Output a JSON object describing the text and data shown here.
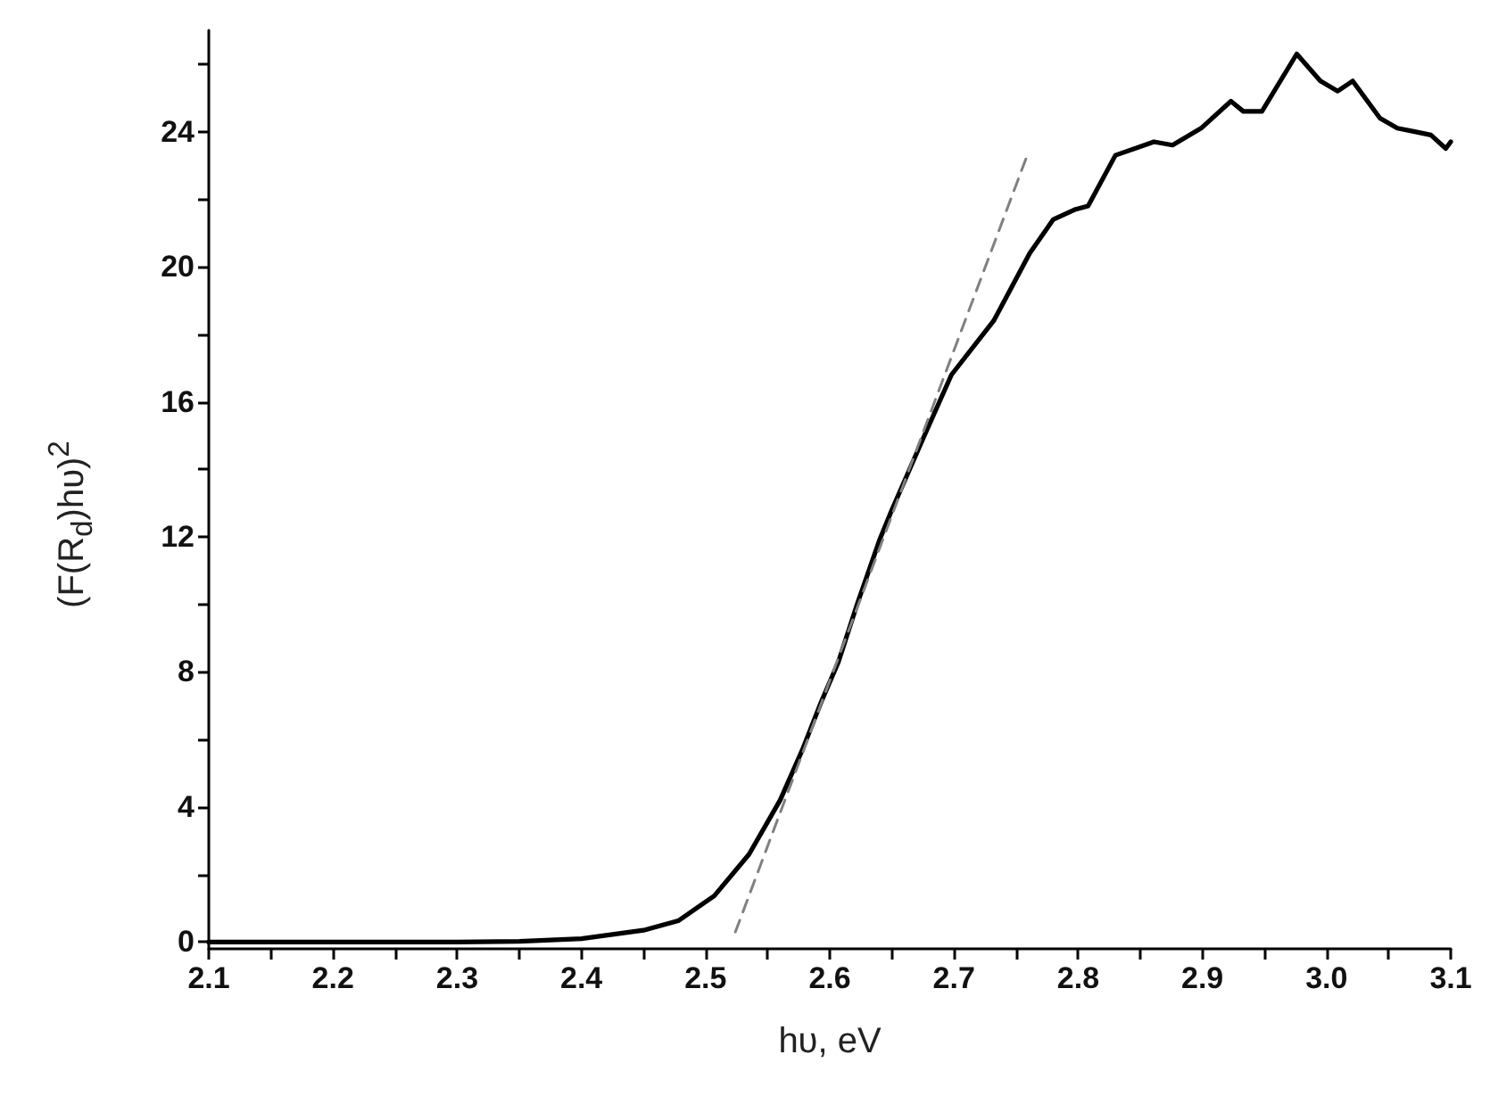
{
  "chart_data": {
    "type": "line",
    "xlabel": "hυ, eV",
    "ylabel": "(F(R$_{d}$)hυ)$^{2}$",
    "series": [
      {
        "color": "#000000",
        "line_style": "solid",
        "x": [
          2.1,
          2.2,
          2.3,
          2.35,
          2.4,
          2.45,
          2.478,
          2.507,
          2.535,
          2.56,
          2.578,
          2.593,
          2.607,
          2.622,
          2.64,
          2.65,
          2.675,
          2.698,
          2.732,
          2.761,
          2.78,
          2.798,
          2.808,
          2.83,
          2.861,
          2.876,
          2.899,
          2.923,
          2.933,
          2.948,
          2.976,
          2.995,
          3.009,
          3.021,
          3.043,
          3.057,
          3.071,
          3.084,
          3.096,
          3.1
        ],
        "values": [
          0,
          0,
          0,
          0.02,
          0.1,
          0.35,
          0.63,
          1.37,
          2.6,
          4.2,
          5.7,
          7.1,
          8.3,
          10.0,
          11.9,
          12.8,
          14.9,
          16.8,
          18.4,
          20.4,
          21.4,
          21.7,
          21.8,
          23.3,
          23.7,
          23.6,
          24.1,
          24.9,
          24.6,
          24.6,
          26.3,
          25.5,
          25.2,
          25.5,
          24.4,
          24.1,
          24.0,
          23.9,
          23.5,
          23.7
        ]
      },
      {
        "color": "#808080",
        "line_style": "dashed",
        "x": [
          2.524,
          2.758
        ],
        "values": [
          0.3,
          23.2
        ]
      }
    ],
    "xlim": [
      2.1,
      3.1
    ],
    "ylim": [
      -0.2,
      27
    ],
    "xticks": [
      2.1,
      {
        "value": 2.15,
        "label": null
      },
      2.2,
      {
        "value": 2.25,
        "label": null
      },
      2.3,
      {
        "value": 2.35,
        "label": null
      },
      2.4,
      {
        "value": 2.45,
        "label": null
      },
      2.5,
      {
        "value": 2.55,
        "label": null
      },
      2.6,
      {
        "value": 2.65,
        "label": null
      },
      2.7,
      {
        "value": 2.75,
        "label": null
      },
      2.8,
      {
        "value": 2.85,
        "label": null
      },
      2.9,
      {
        "value": 2.95,
        "label": null
      },
      {
        "value": 3.0,
        "label": "3.0"
      },
      {
        "value": 3.05,
        "label": null
      },
      3.1
    ],
    "yticks": [
      0,
      {
        "value": 2,
        "label": null
      },
      4,
      {
        "value": 6,
        "label": null
      },
      8,
      {
        "value": 10,
        "label": null
      },
      12,
      {
        "value": 14,
        "label": null
      },
      16,
      {
        "value": 18,
        "label": null
      },
      20,
      {
        "value": 22,
        "label": null
      },
      24,
      {
        "value": 26,
        "label": null
      }
    ],
    "grid": false,
    "marker": "none"
  }
}
